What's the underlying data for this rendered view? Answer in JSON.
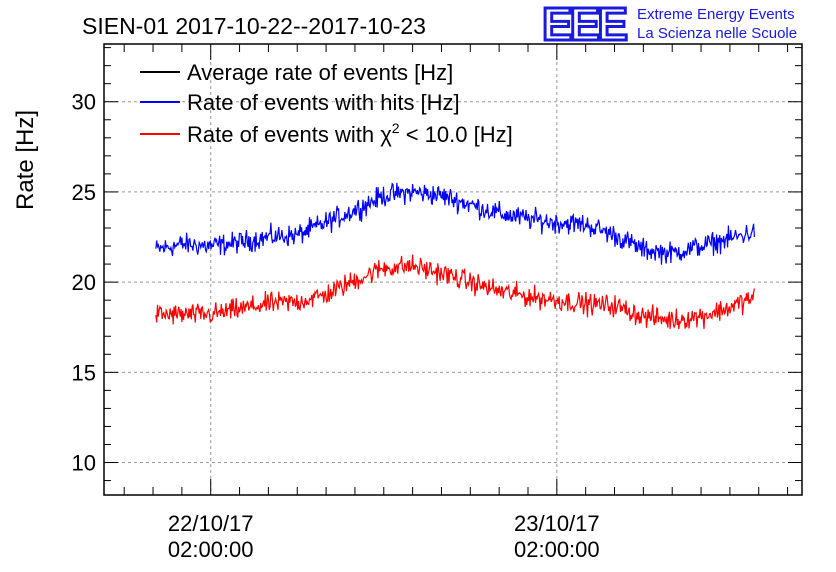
{
  "header": {
    "title": "SIEN-01 2017-10-22--2017-10-23"
  },
  "logo": {
    "mark": "EEE",
    "line1": "Extreme Energy Events",
    "line2": "La Scienza nelle Scuole",
    "color": "#1a1adc"
  },
  "chart_data": {
    "type": "line",
    "title": "SIEN-01 2017-10-22--2017-10-23",
    "xlabel": "",
    "ylabel": "Rate [Hz]",
    "ylim": [
      8.2,
      33.2
    ],
    "yticks": [
      10,
      15,
      20,
      25,
      30
    ],
    "xticks": [
      {
        "label_date": "22/10/17",
        "label_time": "02:00:00",
        "hours": 0
      },
      {
        "label_date": "23/10/17",
        "label_time": "02:00:00",
        "hours": 24
      }
    ],
    "x_unit": "hours from 22/10/17 02:00:00",
    "xlim": [
      -7.4,
      41.0
    ],
    "grid": true,
    "legend_position": "top-left",
    "series": [
      {
        "name": "Average rate of events [Hz]",
        "color": "#000000",
        "x": [],
        "values": []
      },
      {
        "name": "Rate of events with hits [Hz]",
        "color": "#0000ff",
        "noise": 0.55,
        "x": [
          -3.8,
          -2,
          0,
          2,
          4,
          6,
          8,
          10,
          12,
          14,
          16,
          18,
          20,
          22,
          24,
          26,
          28,
          30,
          32,
          34,
          36,
          37.7
        ],
        "values": [
          21.8,
          22.1,
          22.0,
          22.2,
          22.5,
          22.6,
          23.3,
          24.0,
          24.8,
          25.0,
          24.8,
          24.3,
          23.8,
          23.5,
          23.3,
          23.2,
          22.6,
          21.8,
          21.6,
          22.0,
          22.4,
          22.8
        ]
      },
      {
        "name": "Rate of events with χ² < 10.0 [Hz]",
        "label_prefix": "Rate of events with ",
        "label_symbol": "χ",
        "label_sup": "2",
        "label_suffix": " < 10.0 [Hz]",
        "color": "#ff0000",
        "noise": 0.55,
        "x": [
          -3.8,
          -2,
          0,
          2,
          4,
          6,
          8,
          10,
          12,
          14,
          16,
          18,
          20,
          22,
          24,
          26,
          28,
          30,
          32,
          34,
          36,
          37.7
        ],
        "values": [
          18.2,
          18.2,
          18.2,
          18.5,
          18.8,
          18.9,
          19.3,
          20.1,
          20.8,
          20.9,
          20.5,
          20.0,
          19.5,
          19.2,
          19.0,
          18.8,
          18.7,
          18.1,
          17.9,
          18.1,
          18.6,
          19.2
        ]
      }
    ]
  }
}
